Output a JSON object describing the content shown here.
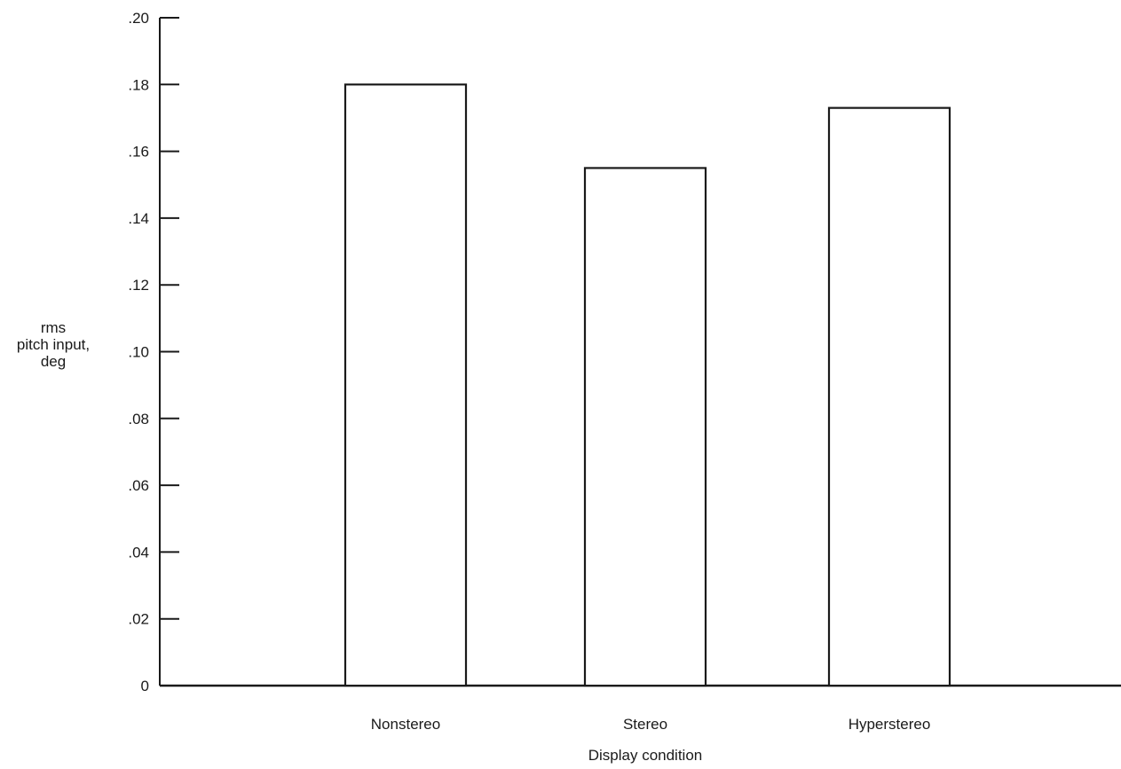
{
  "chart_data": {
    "type": "bar",
    "categories": [
      "Nonstereo",
      "Stereo",
      "Hyperstereo"
    ],
    "values": [
      0.18,
      0.155,
      0.173
    ],
    "xlabel": "Display condition",
    "ylabel_lines": [
      "rms",
      "pitch input,",
      "deg"
    ],
    "ylim": [
      0,
      0.2
    ],
    "yticks": [
      0,
      0.02,
      0.04,
      0.06,
      0.08,
      0.1,
      0.12,
      0.14,
      0.16,
      0.18,
      0.2
    ],
    "ytick_labels": [
      "0",
      ".02",
      ".04",
      ".06",
      ".08",
      ".10",
      ".12",
      ".14",
      ".16",
      ".18",
      ".20"
    ],
    "grid": false,
    "legend": "none",
    "bar_fill": "#ffffff",
    "stroke_color": "#1a1a1a"
  }
}
